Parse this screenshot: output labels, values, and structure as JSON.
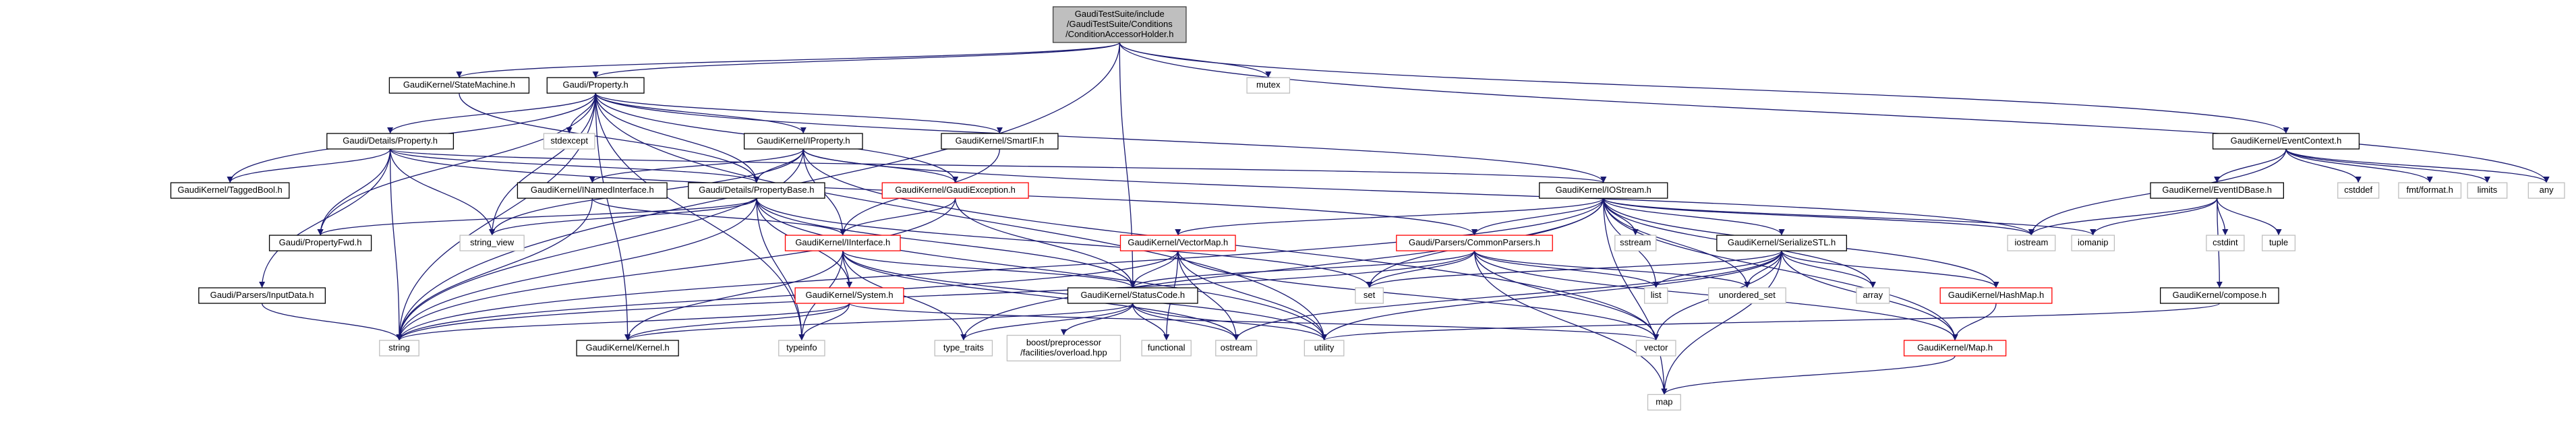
{
  "nodes": [
    {
      "label": [
        "GaudiTestSuite/include",
        "/GaudiTestSuite/Conditions",
        "/ConditionAccessorHolder.h"
      ]
    },
    {
      "label": "GaudiKernel/StateMachine.h"
    },
    {
      "label": "Gaudi/Property.h"
    },
    {
      "label": "mutex"
    },
    {
      "label": "GaudiKernel/EventContext.h"
    },
    {
      "label": "Gaudi/Details/Property.h"
    },
    {
      "label": "stdexcept"
    },
    {
      "label": "GaudiKernel/IProperty.h"
    },
    {
      "label": "GaudiKernel/SmartIF.h"
    },
    {
      "label": "GaudiKernel/TaggedBool.h"
    },
    {
      "label": "GaudiKernel/INamedInterface.h"
    },
    {
      "label": "Gaudi/Details/PropertyBase.h"
    },
    {
      "label": "GaudiKernel/GaudiException.h"
    },
    {
      "label": "GaudiKernel/IOStream.h"
    },
    {
      "label": "GaudiKernel/EventIDBase.h"
    },
    {
      "label": "cstddef"
    },
    {
      "label": "fmt/format.h"
    },
    {
      "label": "limits"
    },
    {
      "label": "any"
    },
    {
      "label": "Gaudi/PropertyFwd.h"
    },
    {
      "label": "string_view"
    },
    {
      "label": "GaudiKernel/IInterface.h"
    },
    {
      "label": "Gaudi/Parsers/CommonParsers.h"
    },
    {
      "label": "GaudiKernel/VectorMap.h"
    },
    {
      "label": "sstream"
    },
    {
      "label": "GaudiKernel/SerializeSTL.h"
    },
    {
      "label": "iostream"
    },
    {
      "label": "iomanip"
    },
    {
      "label": "cstdint"
    },
    {
      "label": "tuple"
    },
    {
      "label": "Gaudi/Parsers/InputData.h"
    },
    {
      "label": "GaudiKernel/System.h"
    },
    {
      "label": "GaudiKernel/StatusCode.h"
    },
    {
      "label": "set"
    },
    {
      "label": "list"
    },
    {
      "label": "unordered_set"
    },
    {
      "label": "array"
    },
    {
      "label": "GaudiKernel/HashMap.h"
    },
    {
      "label": "GaudiKernel/compose.h"
    },
    {
      "label": "string"
    },
    {
      "label": "GaudiKernel/Kernel.h"
    },
    {
      "label": "typeinfo"
    },
    {
      "label": "type_traits"
    },
    {
      "label": [
        "boost/preprocessor",
        "/facilities/overload.hpp"
      ]
    },
    {
      "label": "functional"
    },
    {
      "label": "ostream"
    },
    {
      "label": "utility"
    },
    {
      "label": "vector"
    },
    {
      "label": "GaudiKernel/Map.h"
    },
    {
      "label": "map"
    }
  ]
}
